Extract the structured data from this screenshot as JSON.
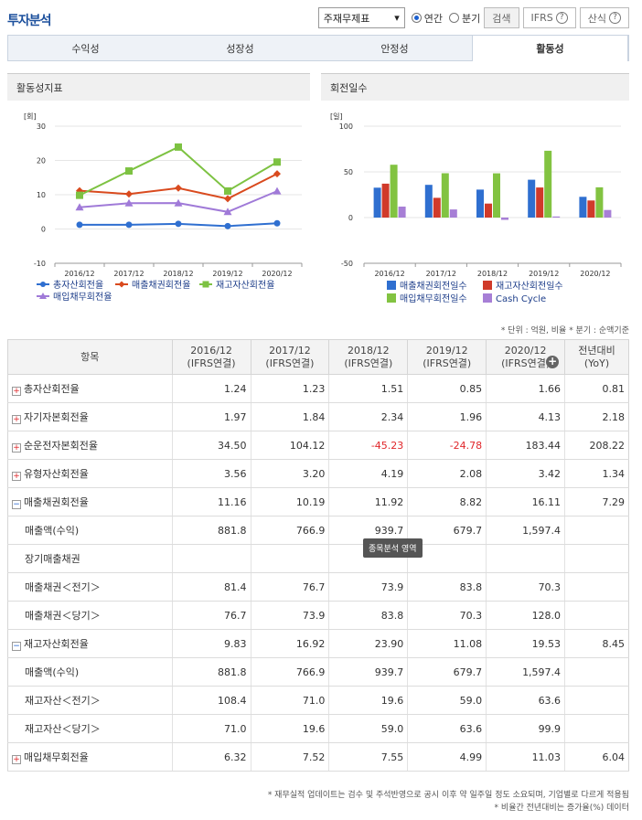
{
  "header": {
    "title": "투자분석",
    "select_value": "주재무제표",
    "radio_annual": "연간",
    "radio_quarter": "분기",
    "search_label": "검색",
    "ifrs_label": "IFRS",
    "formula_label": "산식"
  },
  "tabs": [
    {
      "label": "수익성",
      "active": false
    },
    {
      "label": "성장성",
      "active": false
    },
    {
      "label": "안정성",
      "active": false
    },
    {
      "label": "활동성",
      "active": true
    }
  ],
  "chart_left_title": "활동성지표",
  "chart_right_title": "회전일수",
  "chart_data": [
    {
      "type": "line",
      "unit_label": "[회]",
      "categories": [
        "2016/12",
        "2017/12",
        "2018/12",
        "2019/12",
        "2020/12"
      ],
      "ylim": [
        -10,
        30
      ],
      "yticks": [
        30,
        20,
        10,
        0,
        -10
      ],
      "series": [
        {
          "name": "총자산회전율",
          "color": "#2f6fd0",
          "marker": "circle",
          "values": [
            1.24,
            1.23,
            1.51,
            0.85,
            1.66
          ]
        },
        {
          "name": "매출채권회전율",
          "color": "#d94a1e",
          "marker": "diamond",
          "values": [
            11.16,
            10.19,
            11.92,
            8.82,
            16.11
          ]
        },
        {
          "name": "재고자산회전율",
          "color": "#7dc242",
          "marker": "square",
          "values": [
            9.83,
            16.92,
            23.9,
            11.08,
            19.53
          ]
        },
        {
          "name": "매입채무회전율",
          "color": "#a07ad8",
          "marker": "triangle",
          "values": [
            6.32,
            7.52,
            7.55,
            4.99,
            11.03
          ]
        }
      ]
    },
    {
      "type": "bar",
      "unit_label": "[일]",
      "categories": [
        "2016/12",
        "2017/12",
        "2018/12",
        "2019/12",
        "2020/12"
      ],
      "ylim": [
        -50,
        100
      ],
      "yticks": [
        100,
        50,
        0,
        -50
      ],
      "series": [
        {
          "name": "매출채권회전일수",
          "color": "#2f6fd0",
          "values": [
            32.7,
            35.8,
            30.6,
            41.4,
            22.7
          ]
        },
        {
          "name": "재고자산회전일수",
          "color": "#d03a2a",
          "values": [
            37.1,
            21.6,
            15.3,
            32.9,
            18.7
          ]
        },
        {
          "name": "매입채무회전일수",
          "color": "#82c341",
          "values": [
            57.8,
            48.5,
            48.4,
            73.1,
            33.1
          ]
        },
        {
          "name": "Cash Cycle",
          "color": "#a77fd6",
          "values": [
            12.0,
            8.9,
            -2.5,
            1.2,
            8.3
          ]
        }
      ]
    }
  ],
  "note_top": "* 단위 : 억원, 비율  * 분기 : 순액기준",
  "table": {
    "label_header": "항목",
    "columns": [
      "2016/12\n(IFRS연결)",
      "2017/12\n(IFRS연결)",
      "2018/12\n(IFRS연결)",
      "2019/12\n(IFRS연결)",
      "2020/12\n(IFRS연결)",
      "전년대비\n(YoY)"
    ],
    "rows": [
      {
        "label": "총자산회전율",
        "toggle": "+",
        "values": [
          "1.24",
          "1.23",
          "1.51",
          "0.85",
          "1.66",
          "0.81"
        ]
      },
      {
        "label": "자기자본회전율",
        "toggle": "+",
        "values": [
          "1.97",
          "1.84",
          "2.34",
          "1.96",
          "4.13",
          "2.18"
        ]
      },
      {
        "label": "순운전자본회전율",
        "toggle": "+",
        "values": [
          "34.50",
          "104.12",
          "-45.23",
          "-24.78",
          "183.44",
          "208.22"
        ]
      },
      {
        "label": "유형자산회전율",
        "toggle": "+",
        "values": [
          "3.56",
          "3.20",
          "4.19",
          "2.08",
          "3.42",
          "1.34"
        ]
      },
      {
        "label": "매출채권회전율",
        "toggle": "-",
        "values": [
          "11.16",
          "10.19",
          "11.92",
          "8.82",
          "16.11",
          "7.29"
        ]
      },
      {
        "label": "매출액(수익)",
        "toggle": "",
        "values": [
          "881.8",
          "766.9",
          "939.7",
          "679.7",
          "1,597.4",
          ""
        ]
      },
      {
        "label": "장기매출채권",
        "toggle": "",
        "values": [
          "",
          "",
          "",
          "",
          "",
          ""
        ]
      },
      {
        "label": "매출채권＜전기＞",
        "toggle": "",
        "values": [
          "81.4",
          "76.7",
          "73.9",
          "83.8",
          "70.3",
          ""
        ]
      },
      {
        "label": "매출채권＜당기＞",
        "toggle": "",
        "values": [
          "76.7",
          "73.9",
          "83.8",
          "70.3",
          "128.0",
          ""
        ]
      },
      {
        "label": "재고자산회전율",
        "toggle": "-",
        "values": [
          "9.83",
          "16.92",
          "23.90",
          "11.08",
          "19.53",
          "8.45"
        ]
      },
      {
        "label": "매출액(수익)",
        "toggle": "",
        "values": [
          "881.8",
          "766.9",
          "939.7",
          "679.7",
          "1,597.4",
          ""
        ]
      },
      {
        "label": "재고자산＜전기＞",
        "toggle": "",
        "values": [
          "108.4",
          "71.0",
          "19.6",
          "59.0",
          "63.6",
          ""
        ]
      },
      {
        "label": "재고자산＜당기＞",
        "toggle": "",
        "values": [
          "71.0",
          "19.6",
          "59.0",
          "63.6",
          "99.9",
          ""
        ]
      },
      {
        "label": "매입채무회전율",
        "toggle": "+",
        "values": [
          "6.32",
          "7.52",
          "7.55",
          "4.99",
          "11.03",
          "6.04"
        ]
      }
    ]
  },
  "tooltip": "종목분석 영역",
  "footer_line1": "* 재무실적 업데이트는 검수 및 주석반영으로 공시 이후 약 일주일 정도 소요되며, 기업별로 다르게 적용됨",
  "footer_line2": "* 비율간 전년대비는 증가율(%) 데이터",
  "colors": {
    "accent": "#1b4f9c",
    "negative": "#e0262a"
  }
}
